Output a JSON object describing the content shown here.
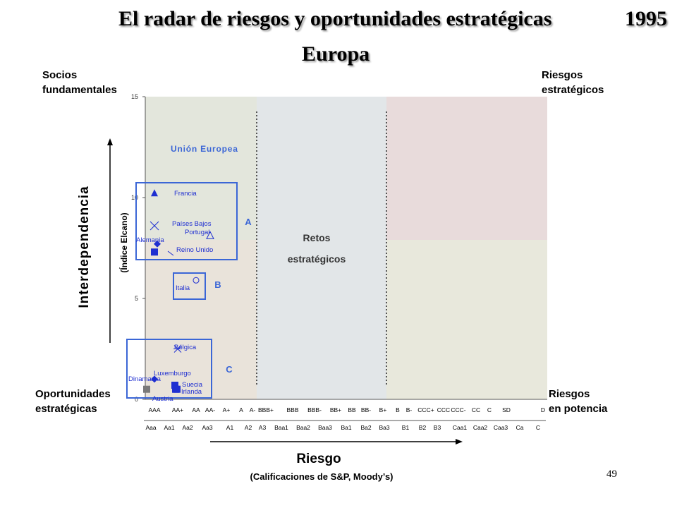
{
  "title": "El radar de riesgos y oportunidades estratégicas",
  "year": "1995",
  "subtitle": "Europa",
  "corners": {
    "top_left": [
      "Socios",
      "fundamentales"
    ],
    "top_right": [
      "Riesgos",
      "estratégicos"
    ],
    "bottom_left": [
      "Oportunidades",
      "estratégicas"
    ],
    "bottom_right": [
      "Riesgos",
      "en potencia"
    ]
  },
  "page_number": "49",
  "chart_data": {
    "type": "scatter",
    "title": "",
    "ylabel": "Interdependencia",
    "ylabel_sub": "(Índice Elcano)",
    "xlabel": "Riesgo",
    "xlabel_sub": "(Calificaciones de S&P, Moody’s)",
    "ylim": [
      0,
      15
    ],
    "y_ticks": [
      0,
      5,
      10,
      15
    ],
    "x_ticks_sp": [
      "AAA",
      "AA+",
      "AA",
      "AA-",
      "A+",
      "A",
      "A-",
      "BBB+",
      "BBB",
      "BBB-",
      "BB+",
      "BB",
      "BB-",
      "B+",
      "B",
      "B-",
      "CCC+",
      "CCC",
      "CCC-",
      "CC",
      "C",
      "SD",
      "D"
    ],
    "x_ticks_moodys": [
      "Aaa",
      "Aa1",
      "Aa2",
      "Aa3",
      "A1",
      "A2",
      "A3",
      "Baa1",
      "Baa2",
      "Baa3",
      "Ba1",
      "Ba2",
      "Ba3",
      "B1",
      "B2",
      "B3",
      "Caa1",
      "Caa2",
      "Caa3",
      "Ca",
      "C"
    ],
    "zones": {
      "center_label": [
        "Retos",
        "estratégicos"
      ]
    },
    "groups": [
      {
        "label": "A"
      },
      {
        "label": "B"
      },
      {
        "label": "C"
      }
    ],
    "annotation": "Unión Europea",
    "points": [
      {
        "name": "Francia",
        "x": "AAA",
        "y": 10.2,
        "marker": "triangle-filled"
      },
      {
        "name": "Países Bajos",
        "x": "AAA",
        "y": 8.6,
        "marker": "x"
      },
      {
        "name": "Portugal",
        "x": "AA-",
        "y": 8.1,
        "marker": "triangle-open"
      },
      {
        "name": "Alemania",
        "x": "AAA",
        "y": 7.7,
        "marker": "diamond"
      },
      {
        "name": "Reino Unido",
        "x": "AAA",
        "y": 7.3,
        "marker": "square"
      },
      {
        "name": "Italia",
        "x": "AA",
        "y": 5.9,
        "marker": "circle-open"
      },
      {
        "name": "Bélgica",
        "x": "AA+",
        "y": 2.5,
        "marker": "asterisk"
      },
      {
        "name": "Luxemburgo",
        "x": "AAA",
        "y": 1.0,
        "marker": "diamond"
      },
      {
        "name": "Dinamarca",
        "x": "AA+",
        "y": 0.5,
        "marker": "square"
      },
      {
        "name": "Suecia",
        "x": "AA+",
        "y": 0.7,
        "marker": "square"
      },
      {
        "name": "Irlanda",
        "x": "AA+",
        "y": 0.5,
        "marker": "square"
      },
      {
        "name": "Austria",
        "x": "AAA",
        "y": 0.5,
        "marker": "square-gray"
      }
    ]
  }
}
